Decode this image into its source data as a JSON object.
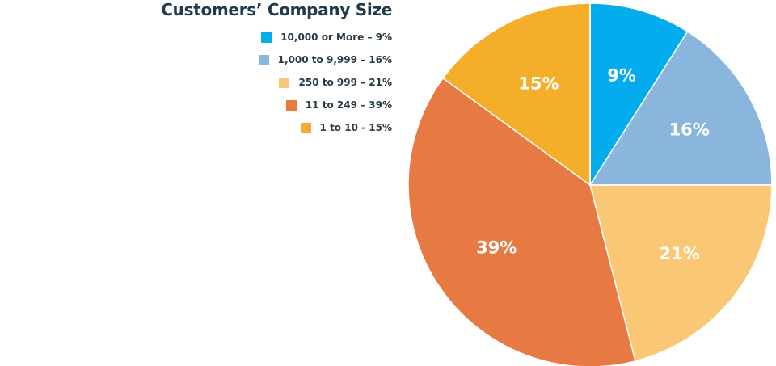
{
  "chart_data": {
    "type": "pie",
    "title": "Customers’ Company Size",
    "slices": [
      {
        "label": "10,000 or More –  9%",
        "value": 9,
        "value_label": "9%",
        "color": "#03aded"
      },
      {
        "label": "1,000 to 9,999 – 16%",
        "value": 16,
        "value_label": "16%",
        "color": "#8ab6dd"
      },
      {
        "label": "250 to 999 – 21%",
        "value": 21,
        "value_label": "21%",
        "color": "#fac874"
      },
      {
        "label": "11 to 249 – 39%",
        "value": 39,
        "value_label": "39%",
        "color": "#e67a42"
      },
      {
        "label": "1 to 10 - 15%",
        "value": 15,
        "value_label": "15%",
        "color": "#f4ae2a"
      }
    ],
    "legend_position": "top-left",
    "start_angle_deg": 0,
    "direction": "clockwise"
  }
}
